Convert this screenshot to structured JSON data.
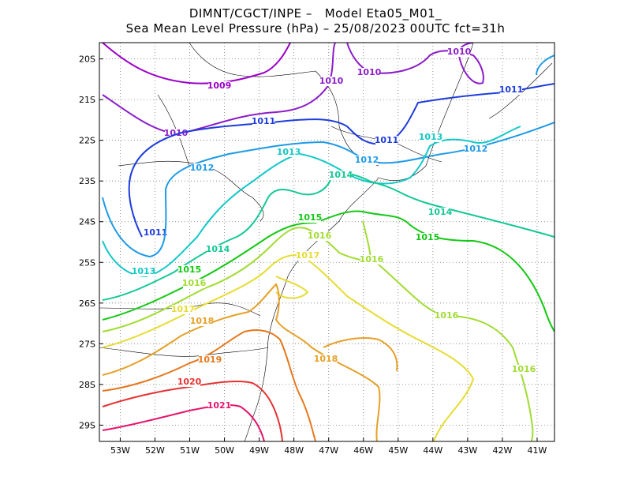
{
  "header": {
    "line1": "DIMNT/CGCT/INPE –   Model Eta05_M01_",
    "line2": "Sea Mean Level Pressure (hPa) – 25/08/2023 00UTC fct=31h"
  },
  "map": {
    "type": "contour-map",
    "lon_range": [
      -53.6,
      -40.5
    ],
    "lat_range": [
      -29.4,
      -19.6
    ],
    "lon_ticks": [
      "53W",
      "52W",
      "51W",
      "50W",
      "49W",
      "48W",
      "47W",
      "46W",
      "45W",
      "44W",
      "43W",
      "42W",
      "41W"
    ],
    "lat_ticks": [
      "20S",
      "21S",
      "22S",
      "23S",
      "24S",
      "25S",
      "26S",
      "27S",
      "28S",
      "29S"
    ],
    "grid": "dotted",
    "contours": [
      {
        "value": "1009",
        "color": "#9b00c8"
      },
      {
        "value": "1010",
        "color": "#8c1cc8"
      },
      {
        "value": "1011",
        "color": "#1e3cdc"
      },
      {
        "value": "1012",
        "color": "#1e9ae6"
      },
      {
        "value": "1013",
        "color": "#14c8c8"
      },
      {
        "value": "1014",
        "color": "#14c896"
      },
      {
        "value": "1015",
        "color": "#14c814"
      },
      {
        "value": "1016",
        "color": "#a0dc32"
      },
      {
        "value": "1017",
        "color": "#e6dc32"
      },
      {
        "value": "1018",
        "color": "#e6a028"
      },
      {
        "value": "1019",
        "color": "#e6781e"
      },
      {
        "value": "1020",
        "color": "#e63232"
      },
      {
        "value": "1021",
        "color": "#e6146e"
      }
    ]
  }
}
